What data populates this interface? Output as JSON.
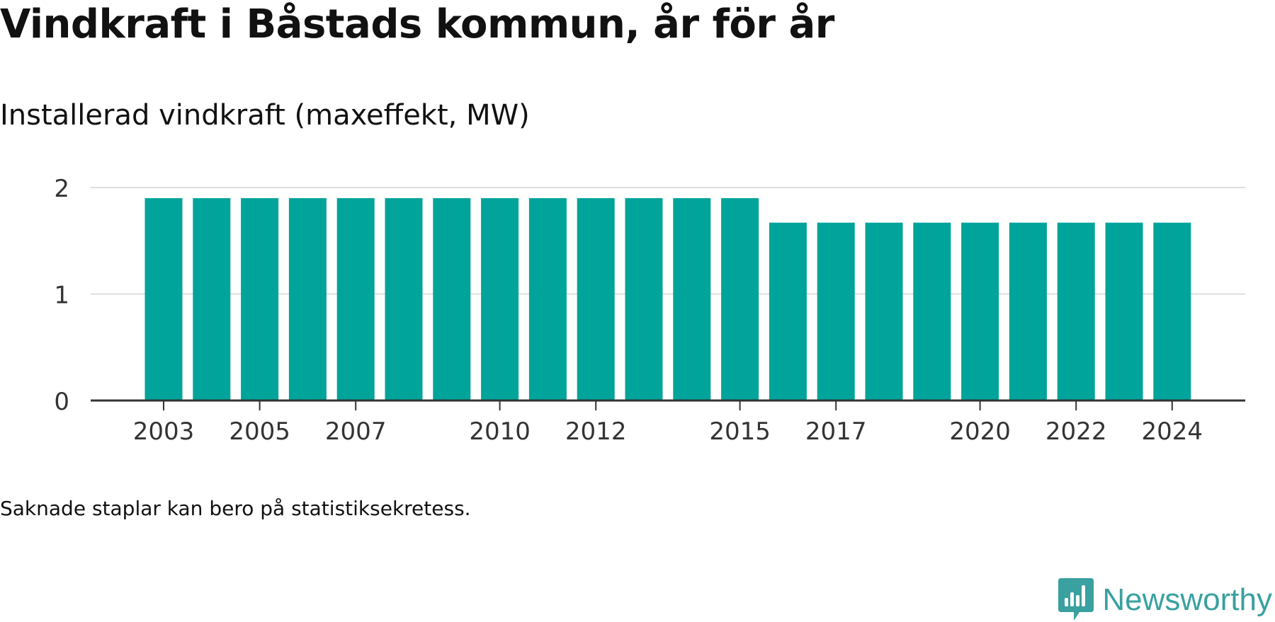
{
  "header": {
    "title": "Vindkraft i Båstads kommun, år för år",
    "subtitle": "Installerad vindkraft (maxeffekt, MW)"
  },
  "footer": {
    "note": "Saknade staplar kan bero på statistiksekretess.",
    "brand": "Newsworthy"
  },
  "colors": {
    "bar": "#00a49a",
    "grid": "#dddddd",
    "axis": "#333333",
    "brand": "#3aa0a0"
  },
  "chart_data": {
    "type": "bar",
    "categories": [
      "2003",
      "2004",
      "2005",
      "2006",
      "2007",
      "2008",
      "2009",
      "2010",
      "2011",
      "2012",
      "2013",
      "2014",
      "2015",
      "2016",
      "2017",
      "2018",
      "2019",
      "2020",
      "2021",
      "2022",
      "2023",
      "2024"
    ],
    "values": [
      1.9,
      1.9,
      1.9,
      1.9,
      1.9,
      1.9,
      1.9,
      1.9,
      1.9,
      1.9,
      1.9,
      1.9,
      1.9,
      1.67,
      1.67,
      1.67,
      1.67,
      1.67,
      1.67,
      1.67,
      1.67,
      1.67
    ],
    "x_tick_labels": [
      "2003",
      "2005",
      "2007",
      "2010",
      "2012",
      "2015",
      "2017",
      "2020",
      "2022",
      "2024"
    ],
    "y_ticks": [
      0,
      1,
      2
    ],
    "ylim": [
      0,
      2
    ],
    "title": "Vindkraft i Båstads kommun, år för år",
    "ylabel": "Installerad vindkraft (maxeffekt, MW)",
    "xlabel": "",
    "grid": true,
    "legend": "none"
  }
}
